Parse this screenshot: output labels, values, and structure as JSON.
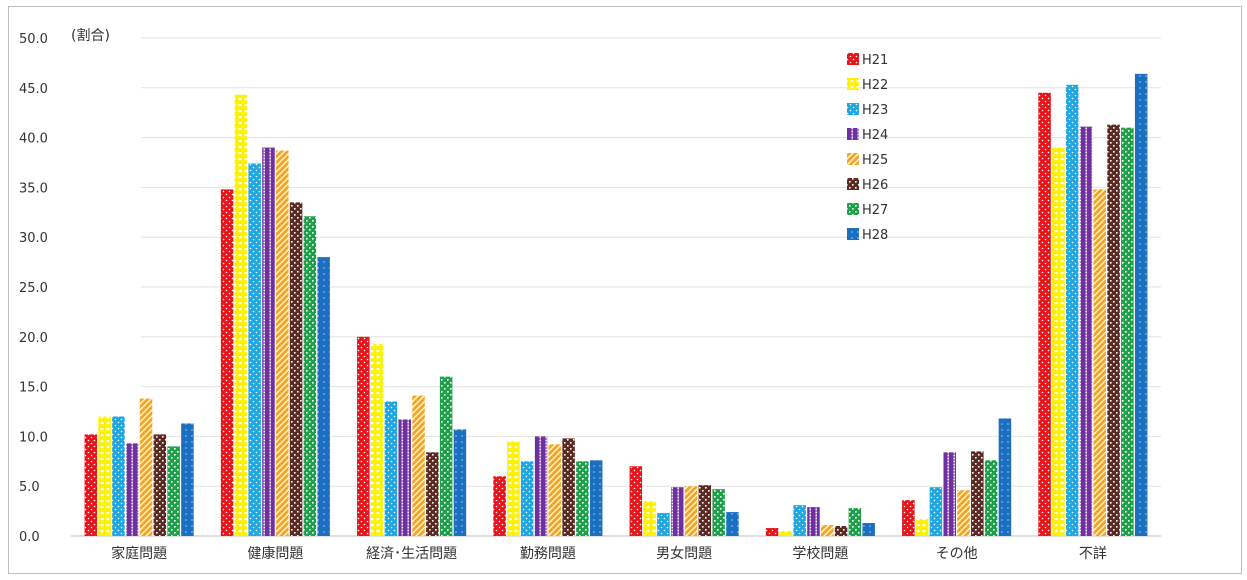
{
  "chart_data": {
    "type": "bar",
    "unit_label": "(割合)",
    "categories": [
      "家庭問題",
      "健康問題",
      "経済･生活問題",
      "勤務問題",
      "男女問題",
      "学校問題",
      "その他",
      "不詳"
    ],
    "y_ticks": [
      "0.0",
      "5.0",
      "10.0",
      "15.0",
      "20.0",
      "25.0",
      "30.0",
      "35.0",
      "40.0",
      "45.0",
      "50.0"
    ],
    "ylim": [
      0,
      50
    ],
    "grid": true,
    "legend_position": "top-right",
    "series": [
      {
        "name": "H21",
        "color": "#e8141b",
        "pattern": "dots",
        "values": [
          10.2,
          34.8,
          20.0,
          6.0,
          7.0,
          0.8,
          3.6,
          44.5
        ]
      },
      {
        "name": "H22",
        "color": "#fff200",
        "pattern": "hbars",
        "values": [
          12.0,
          44.3,
          19.3,
          9.5,
          3.5,
          0.5,
          1.7,
          39.0
        ]
      },
      {
        "name": "H23",
        "color": "#1ea7e1",
        "pattern": "dots",
        "values": [
          12.0,
          37.4,
          13.5,
          7.5,
          2.3,
          3.1,
          4.9,
          45.3
        ]
      },
      {
        "name": "H24",
        "color": "#7030a0",
        "pattern": "vstripe",
        "values": [
          9.3,
          39.0,
          11.7,
          10.0,
          4.9,
          2.9,
          8.4,
          41.1
        ]
      },
      {
        "name": "H25",
        "color": "#f5a623",
        "pattern": "diag",
        "values": [
          13.8,
          38.7,
          14.1,
          9.2,
          5.0,
          1.1,
          4.6,
          34.8
        ]
      },
      {
        "name": "H26",
        "color": "#5b2a22",
        "pattern": "check",
        "values": [
          10.2,
          33.5,
          8.4,
          9.8,
          5.1,
          1.0,
          8.5,
          41.3
        ]
      },
      {
        "name": "H27",
        "color": "#1fa04a",
        "pattern": "check",
        "values": [
          9.0,
          32.1,
          16.0,
          7.5,
          4.7,
          2.8,
          7.6,
          41.0
        ]
      },
      {
        "name": "H28",
        "color": "#1a6fc0",
        "pattern": "sparse",
        "values": [
          11.3,
          28.0,
          10.7,
          7.6,
          2.4,
          1.3,
          11.8,
          46.4
        ]
      }
    ]
  }
}
